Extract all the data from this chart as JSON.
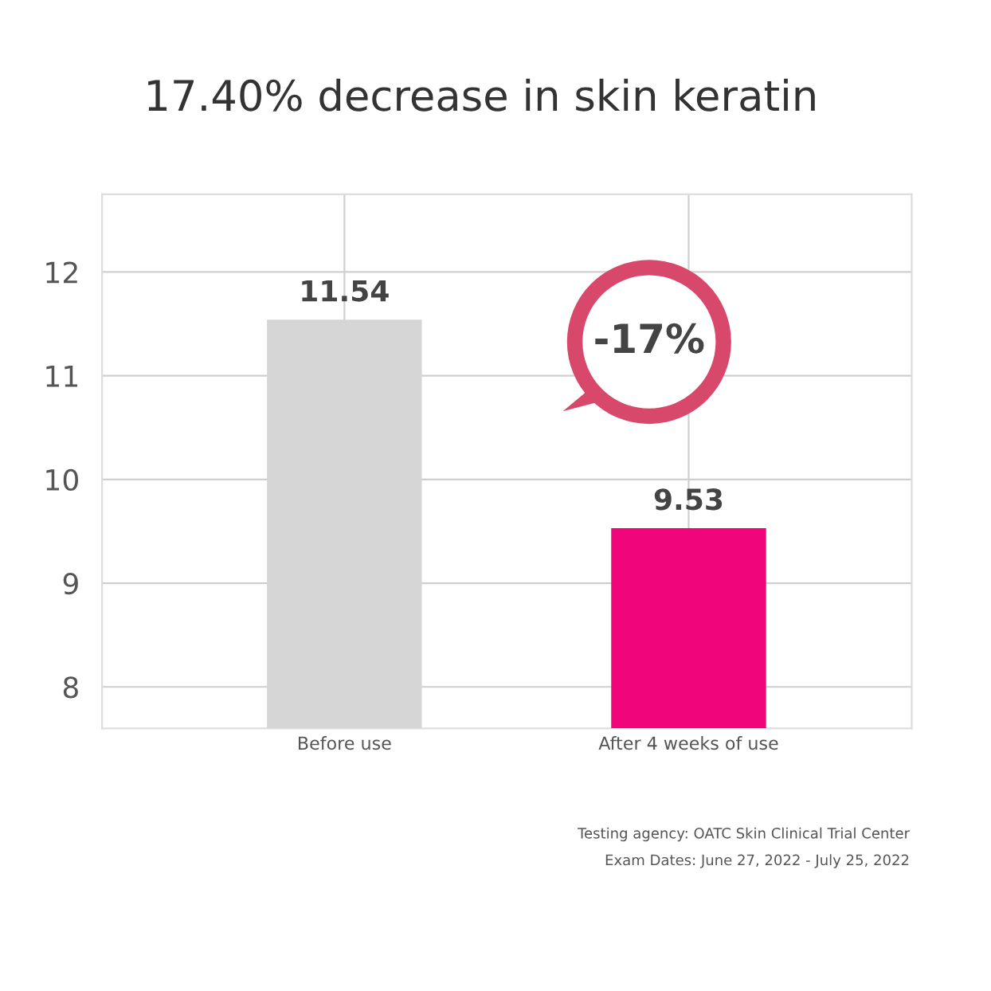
{
  "chart_data": {
    "type": "bar",
    "title": "17.40% decrease in skin keratin",
    "categories": [
      "Before use",
      "After 4 weeks of use"
    ],
    "values": [
      11.54,
      9.53
    ],
    "colors": [
      "#d6d6d6",
      "#f0067a"
    ],
    "data_labels": true,
    "ylim": [
      7.6,
      12.75
    ],
    "yticks": [
      8,
      9,
      10,
      11,
      12
    ],
    "grid": true,
    "annotations": [
      "-17%",
      "Testing agency: OATC Skin Clinical Trial Center",
      "Exam Dates: June 27, 2022 - July 25, 2022"
    ]
  }
}
